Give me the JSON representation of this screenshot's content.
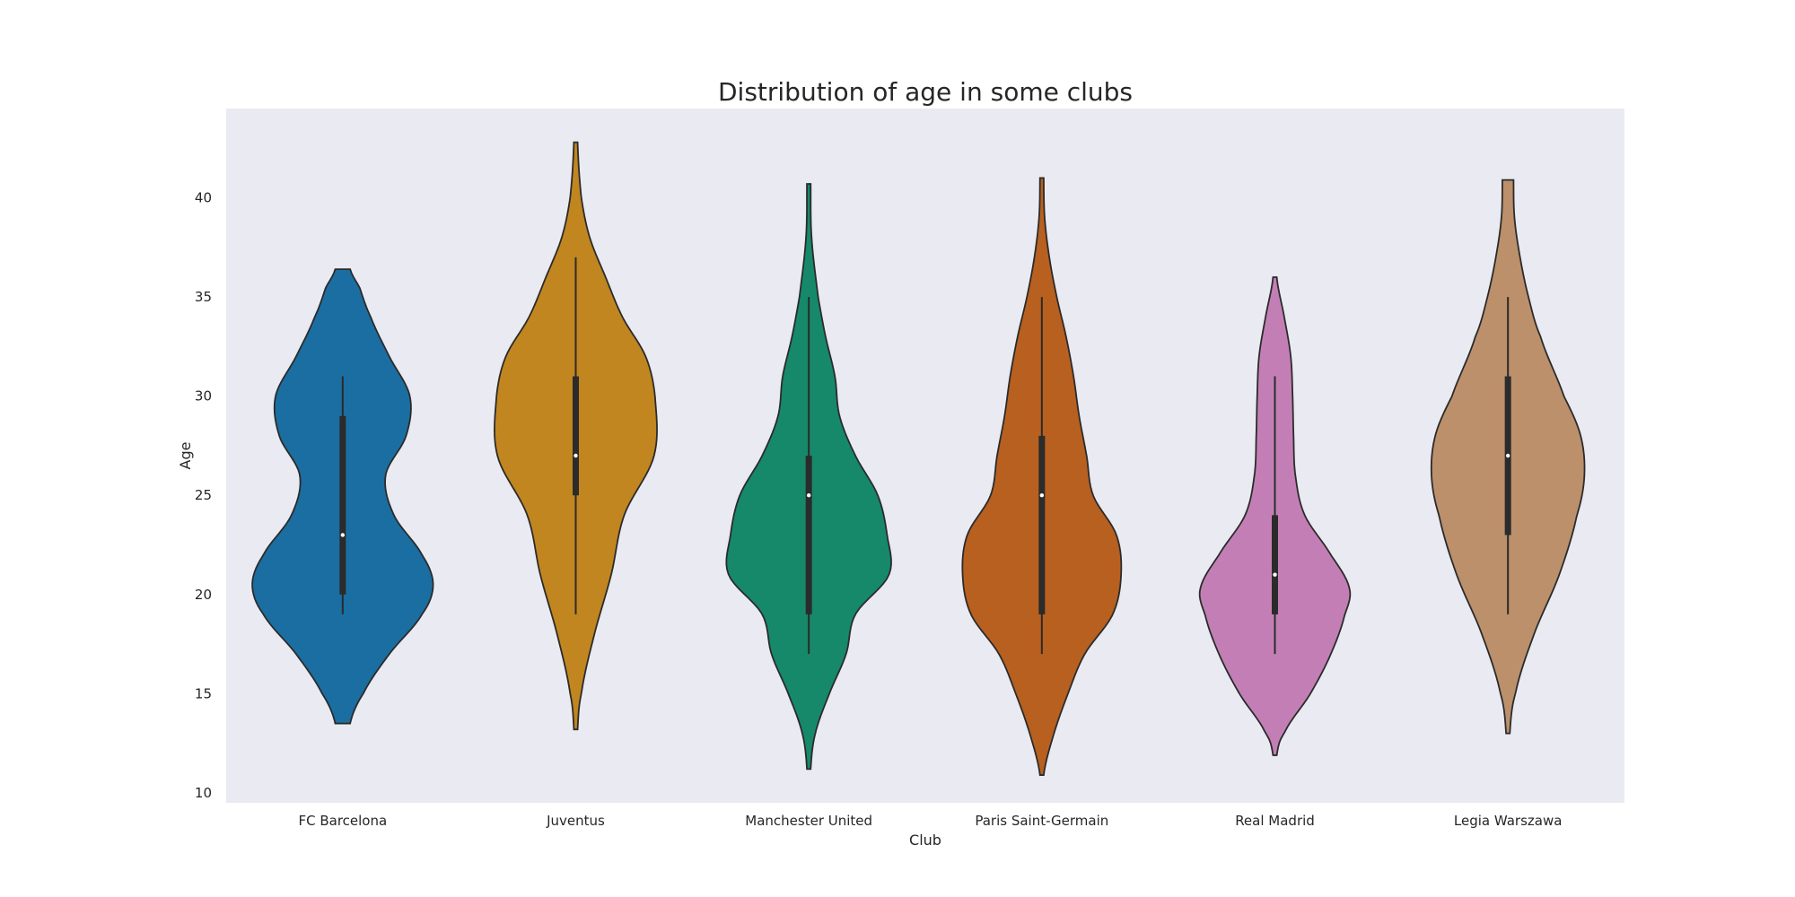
{
  "chart_data": {
    "type": "violin",
    "title": "Distribution of age in some clubs",
    "xlabel": "Club",
    "ylabel": "Age",
    "ylim": [
      9.5,
      44.5
    ],
    "yticks": [
      10,
      15,
      20,
      25,
      30,
      35,
      40
    ],
    "grid": false,
    "background": "#eaeaf2",
    "series": [
      {
        "category": "FC Barcelona",
        "color": "#1a6ea1",
        "min": 19,
        "q1": 20,
        "median": 23,
        "q3": 29,
        "max": 31,
        "kde_min": 13.5,
        "kde_max": 36.4,
        "density": [
          [
            13.5,
            0.08
          ],
          [
            15,
            0.22
          ],
          [
            17,
            0.5
          ],
          [
            19,
            0.85
          ],
          [
            20.5,
            0.97
          ],
          [
            22,
            0.85
          ],
          [
            24,
            0.55
          ],
          [
            26,
            0.46
          ],
          [
            28,
            0.68
          ],
          [
            30,
            0.72
          ],
          [
            32,
            0.5
          ],
          [
            34,
            0.3
          ],
          [
            35.5,
            0.18
          ],
          [
            36.4,
            0.08
          ]
        ]
      },
      {
        "category": "Juventus",
        "color": "#c1861f",
        "min": 19,
        "q1": 25,
        "median": 27,
        "q3": 31,
        "max": 37,
        "kde_min": 13.2,
        "kde_max": 42.8,
        "density": [
          [
            13.2,
            0.02
          ],
          [
            15,
            0.06
          ],
          [
            18,
            0.2
          ],
          [
            21,
            0.38
          ],
          [
            24,
            0.52
          ],
          [
            27,
            0.84
          ],
          [
            30,
            0.85
          ],
          [
            32,
            0.75
          ],
          [
            34,
            0.5
          ],
          [
            36,
            0.32
          ],
          [
            38,
            0.15
          ],
          [
            40,
            0.06
          ],
          [
            42.8,
            0.02
          ]
        ]
      },
      {
        "category": "Manchester United",
        "color": "#16896a",
        "min": 17,
        "q1": 19,
        "median": 25,
        "q3": 27,
        "max": 35,
        "kde_min": 11.2,
        "kde_max": 40.7,
        "density": [
          [
            11.2,
            0.02
          ],
          [
            13,
            0.07
          ],
          [
            15,
            0.22
          ],
          [
            17,
            0.4
          ],
          [
            19,
            0.5
          ],
          [
            21,
            0.86
          ],
          [
            23,
            0.84
          ],
          [
            25,
            0.74
          ],
          [
            27,
            0.5
          ],
          [
            29,
            0.33
          ],
          [
            31,
            0.28
          ],
          [
            33,
            0.18
          ],
          [
            35,
            0.1
          ],
          [
            38,
            0.03
          ],
          [
            40.7,
            0.02
          ]
        ]
      },
      {
        "category": "Paris Saint-Germain",
        "color": "#b8601f",
        "min": 17,
        "q1": 19,
        "median": 25,
        "q3": 28,
        "max": 35,
        "kde_min": 10.9,
        "kde_max": 41.0,
        "density": [
          [
            10.9,
            0.02
          ],
          [
            13,
            0.13
          ],
          [
            15,
            0.28
          ],
          [
            17,
            0.46
          ],
          [
            19,
            0.76
          ],
          [
            21,
            0.85
          ],
          [
            23,
            0.8
          ],
          [
            25,
            0.55
          ],
          [
            27,
            0.48
          ],
          [
            29,
            0.4
          ],
          [
            31,
            0.34
          ],
          [
            33,
            0.26
          ],
          [
            35,
            0.16
          ],
          [
            37,
            0.08
          ],
          [
            39,
            0.03
          ],
          [
            41,
            0.02
          ]
        ]
      },
      {
        "category": "Real Madrid",
        "color": "#c37fb5",
        "min": 17,
        "q1": 19,
        "median": 21,
        "q3": 24,
        "max": 31,
        "kde_min": 11.9,
        "kde_max": 36.0,
        "density": [
          [
            11.9,
            0.02
          ],
          [
            13,
            0.1
          ],
          [
            15,
            0.38
          ],
          [
            17,
            0.6
          ],
          [
            19,
            0.75
          ],
          [
            20.3,
            0.8
          ],
          [
            22,
            0.6
          ],
          [
            24,
            0.32
          ],
          [
            26,
            0.22
          ],
          [
            28,
            0.2
          ],
          [
            30,
            0.19
          ],
          [
            32,
            0.17
          ],
          [
            34,
            0.1
          ],
          [
            36,
            0.02
          ]
        ]
      },
      {
        "category": "Legia Warszawa",
        "color": "#bb906b",
        "min": 19,
        "q1": 23,
        "median": 27,
        "q3": 31,
        "max": 35,
        "kde_min": 13.0,
        "kde_max": 40.9,
        "density": [
          [
            13,
            0.02
          ],
          [
            15,
            0.08
          ],
          [
            18,
            0.28
          ],
          [
            21,
            0.55
          ],
          [
            24,
            0.74
          ],
          [
            26,
            0.82
          ],
          [
            28,
            0.78
          ],
          [
            30,
            0.6
          ],
          [
            33,
            0.35
          ],
          [
            35,
            0.22
          ],
          [
            37,
            0.13
          ],
          [
            39,
            0.07
          ],
          [
            40.9,
            0.06
          ]
        ]
      }
    ]
  }
}
